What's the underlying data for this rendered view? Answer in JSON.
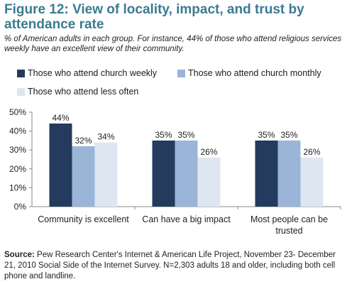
{
  "title": "Figure 12: View of locality, impact, and trust by attendance rate",
  "subtitle": "% of American adults in each group. For instance, 44% of those who attend religious services weekly have an excellent view of their community.",
  "source_label": "Source:",
  "source_text": "Pew Research Center's Internet & American Life Project, November 23- December 21, 2010 Social Side of the Internet Survey. N=2,303 adults 18 and older, including both cell phone and landline.",
  "colors": {
    "title": "#3b7a92",
    "series": [
      "#243b5e",
      "#9bb5d9",
      "#dde6f1"
    ]
  },
  "chart_data": {
    "type": "bar",
    "categories": [
      "Community is excellent",
      "Can have a big impact",
      "Most people can be trusted"
    ],
    "series": [
      {
        "name": "Those who attend church weekly",
        "values": [
          44,
          35,
          35
        ]
      },
      {
        "name": "Those who attend church monthly",
        "values": [
          32,
          35,
          35
        ]
      },
      {
        "name": "Those who attend less often",
        "values": [
          34,
          26,
          26
        ]
      }
    ],
    "data_labels": [
      [
        "44%",
        "32%",
        "34%"
      ],
      [
        "35%",
        "35%",
        "26%"
      ],
      [
        "35%",
        "35%",
        "26%"
      ]
    ],
    "y_ticks": [
      "0%",
      "10%",
      "20%",
      "30%",
      "40%",
      "50%"
    ],
    "ylim": [
      0,
      50
    ],
    "grid": false,
    "legend": "top"
  }
}
